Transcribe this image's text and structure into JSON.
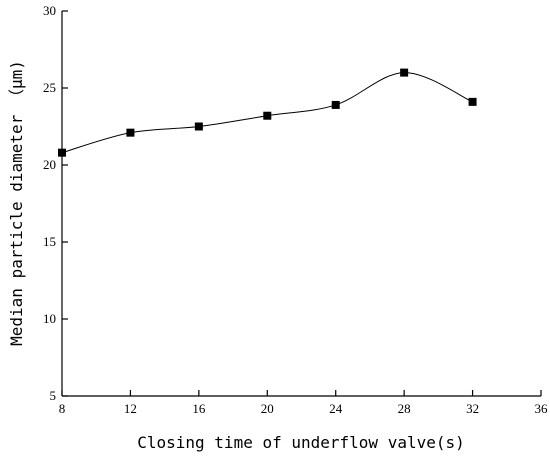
{
  "chart_data": {
    "type": "line",
    "title": "",
    "xlabel": "Closing time of underflow valve(s)",
    "ylabel": "Median particle diameter （μm)",
    "xlim": [
      8,
      36
    ],
    "ylim": [
      5,
      30
    ],
    "xticks": [
      8,
      12,
      16,
      20,
      24,
      28,
      32,
      36
    ],
    "yticks": [
      5,
      10,
      15,
      20,
      25,
      30
    ],
    "grid": false,
    "legend": "none",
    "smooth": true,
    "marker": "square",
    "color": "#000000",
    "series": [
      {
        "x": [
          8,
          12,
          16,
          20,
          24,
          28,
          32
        ],
        "y": [
          20.8,
          22.1,
          22.5,
          23.2,
          23.9,
          26.0,
          24.1
        ]
      }
    ]
  }
}
